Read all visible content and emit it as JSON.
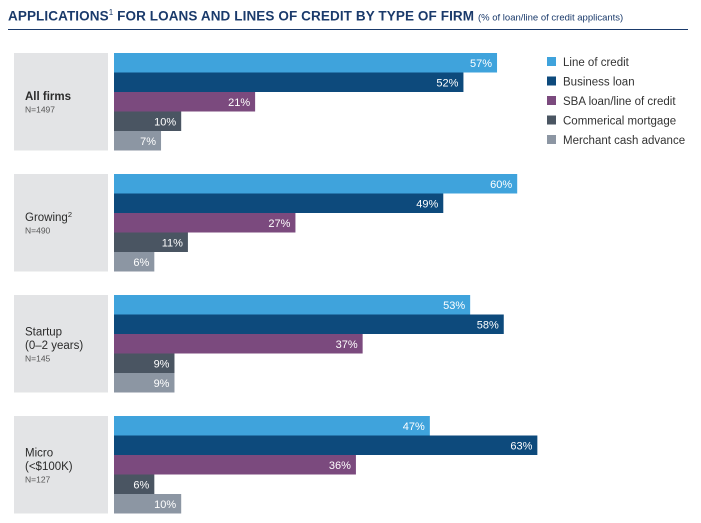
{
  "title": {
    "main": "APPLICATIONS",
    "footnote": "1",
    "rest": " FOR LOANS AND LINES OF CREDIT BY TYPE OF FIRM",
    "subtitle": "(% of loan/line of credit applicants)"
  },
  "chart_data": {
    "type": "bar",
    "orientation": "horizontal",
    "title": "APPLICATIONS FOR LOANS AND LINES OF CREDIT BY TYPE OF FIRM",
    "subtitle": "(% of loan/line of credit applicants)",
    "unit": "%",
    "xlim": [
      0,
      70
    ],
    "groups": [
      {
        "label_lines": [
          "All firms"
        ],
        "superscript": "",
        "n": "N=1497",
        "bold": true
      },
      {
        "label_lines": [
          "Growing"
        ],
        "superscript": "2",
        "n": "N=490",
        "bold": false
      },
      {
        "label_lines": [
          "Startup",
          "(0–2 years)"
        ],
        "superscript": "",
        "n": "N=145",
        "bold": false
      },
      {
        "label_lines": [
          "Micro",
          "(<$100K)"
        ],
        "superscript": "",
        "n": "N=127",
        "bold": false
      }
    ],
    "series": [
      {
        "name": "Line of credit",
        "color": "#3fa3dc",
        "label_color": "#ffffff",
        "values": [
          57,
          60,
          53,
          47
        ]
      },
      {
        "name": "Business loan",
        "color": "#0d4a7c",
        "label_color": "#ffffff",
        "values": [
          52,
          49,
          58,
          63
        ]
      },
      {
        "name": "SBA loan/line of credit",
        "color": "#7b4a7e",
        "label_color": "#ffffff",
        "values": [
          21,
          27,
          37,
          36
        ]
      },
      {
        "name": "Commerical mortgage",
        "color": "#4a5562",
        "label_color": "#ffffff",
        "values": [
          10,
          11,
          9,
          6
        ]
      },
      {
        "name": "Merchant cash advance",
        "color": "#8c96a3",
        "label_color": "#ffffff",
        "values": [
          7,
          6,
          9,
          10
        ]
      }
    ]
  }
}
